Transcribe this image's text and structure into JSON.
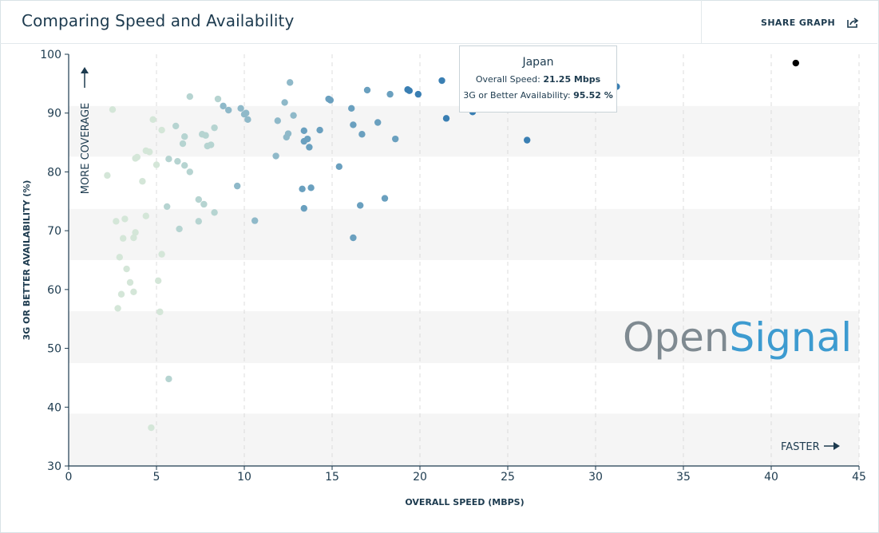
{
  "header": {
    "title": "Comparing Speed and Availability",
    "share_label": "SHARE GRAPH",
    "share_icon": "share-icon"
  },
  "tooltip": {
    "country": "Japan",
    "speed_label": "Overall Speed:",
    "speed_value": "21.25 Mbps",
    "avail_label": "3G or Better Availability:",
    "avail_value": "95.52 %"
  },
  "annotations": {
    "more_coverage": "MORE COVERAGE",
    "faster": "FASTER",
    "watermark_part1": "Open",
    "watermark_part2": "Signal"
  },
  "colors": {
    "light": "#d4e6d8",
    "mid_light": "#b6d4d1",
    "mid": "#8fb9c9",
    "mid_dark": "#6aa0bf",
    "dark": "#3a7fb3",
    "highlight": "#000000",
    "band": "#f5f5f5",
    "watermark_grey": "#7f8a91",
    "watermark_blue": "#3d9bd0"
  },
  "chart_data": {
    "type": "scatter",
    "title": "",
    "xlabel": "OVERALL SPEED (MBPS)",
    "ylabel": "3G OR BETTER AVAILABILITY (%)",
    "xlim": [
      0,
      45
    ],
    "ylim": [
      30,
      100
    ],
    "xticks": [
      0,
      5,
      10,
      15,
      20,
      25,
      30,
      35,
      40,
      45
    ],
    "yticks": [
      30,
      40,
      50,
      60,
      70,
      80,
      90,
      100
    ],
    "grid": "vertical dashed",
    "points": [
      {
        "x": 2.2,
        "y": 79.4
      },
      {
        "x": 2.5,
        "y": 90.6
      },
      {
        "x": 2.7,
        "y": 71.6
      },
      {
        "x": 2.8,
        "y": 56.8
      },
      {
        "x": 2.9,
        "y": 65.5
      },
      {
        "x": 3.0,
        "y": 59.2
      },
      {
        "x": 3.1,
        "y": 68.7
      },
      {
        "x": 3.2,
        "y": 72.0
      },
      {
        "x": 3.3,
        "y": 63.5
      },
      {
        "x": 3.5,
        "y": 61.2
      },
      {
        "x": 3.7,
        "y": 59.6
      },
      {
        "x": 3.7,
        "y": 68.8
      },
      {
        "x": 3.8,
        "y": 69.7
      },
      {
        "x": 3.8,
        "y": 82.3
      },
      {
        "x": 3.9,
        "y": 82.5
      },
      {
        "x": 4.2,
        "y": 78.4
      },
      {
        "x": 4.4,
        "y": 72.5
      },
      {
        "x": 4.4,
        "y": 83.6
      },
      {
        "x": 4.6,
        "y": 83.4
      },
      {
        "x": 4.7,
        "y": 36.5
      },
      {
        "x": 4.8,
        "y": 88.9
      },
      {
        "x": 5.0,
        "y": 81.2
      },
      {
        "x": 5.1,
        "y": 61.5
      },
      {
        "x": 5.2,
        "y": 56.2
      },
      {
        "x": 5.3,
        "y": 66.0
      },
      {
        "x": 5.3,
        "y": 87.1
      },
      {
        "x": 5.6,
        "y": 74.1
      },
      {
        "x": 5.7,
        "y": 82.2
      },
      {
        "x": 5.7,
        "y": 44.8
      },
      {
        "x": 6.1,
        "y": 87.8
      },
      {
        "x": 6.2,
        "y": 81.8
      },
      {
        "x": 6.3,
        "y": 70.3
      },
      {
        "x": 6.5,
        "y": 84.8
      },
      {
        "x": 6.6,
        "y": 86.0
      },
      {
        "x": 6.6,
        "y": 81.1
      },
      {
        "x": 6.9,
        "y": 80.0
      },
      {
        "x": 6.9,
        "y": 92.8
      },
      {
        "x": 7.4,
        "y": 75.3
      },
      {
        "x": 7.4,
        "y": 71.6
      },
      {
        "x": 7.6,
        "y": 86.4
      },
      {
        "x": 7.7,
        "y": 74.5
      },
      {
        "x": 7.8,
        "y": 86.2
      },
      {
        "x": 7.9,
        "y": 84.4
      },
      {
        "x": 8.1,
        "y": 84.6
      },
      {
        "x": 8.3,
        "y": 87.5
      },
      {
        "x": 8.3,
        "y": 73.1
      },
      {
        "x": 8.5,
        "y": 92.4
      },
      {
        "x": 8.8,
        "y": 91.2
      },
      {
        "x": 9.1,
        "y": 90.5
      },
      {
        "x": 9.6,
        "y": 77.6
      },
      {
        "x": 9.8,
        "y": 90.8
      },
      {
        "x": 10.0,
        "y": 89.8
      },
      {
        "x": 10.1,
        "y": 90.0
      },
      {
        "x": 10.2,
        "y": 88.9
      },
      {
        "x": 10.6,
        "y": 71.7
      },
      {
        "x": 11.8,
        "y": 82.7
      },
      {
        "x": 11.9,
        "y": 88.7
      },
      {
        "x": 12.3,
        "y": 91.8
      },
      {
        "x": 12.4,
        "y": 85.9
      },
      {
        "x": 12.5,
        "y": 86.5
      },
      {
        "x": 12.6,
        "y": 95.2
      },
      {
        "x": 12.8,
        "y": 89.6
      },
      {
        "x": 13.3,
        "y": 77.1
      },
      {
        "x": 13.4,
        "y": 85.2
      },
      {
        "x": 13.4,
        "y": 73.8
      },
      {
        "x": 13.4,
        "y": 87.0
      },
      {
        "x": 13.6,
        "y": 85.6
      },
      {
        "x": 13.7,
        "y": 84.2
      },
      {
        "x": 13.8,
        "y": 77.3
      },
      {
        "x": 14.3,
        "y": 87.1
      },
      {
        "x": 14.8,
        "y": 92.4
      },
      {
        "x": 14.9,
        "y": 92.2
      },
      {
        "x": 15.4,
        "y": 80.9
      },
      {
        "x": 16.1,
        "y": 90.8
      },
      {
        "x": 16.2,
        "y": 88.0
      },
      {
        "x": 16.2,
        "y": 68.8
      },
      {
        "x": 16.6,
        "y": 74.3
      },
      {
        "x": 16.7,
        "y": 86.4
      },
      {
        "x": 17.0,
        "y": 93.9
      },
      {
        "x": 17.6,
        "y": 88.4
      },
      {
        "x": 18.0,
        "y": 75.5
      },
      {
        "x": 18.3,
        "y": 93.2
      },
      {
        "x": 18.6,
        "y": 85.6
      },
      {
        "x": 19.3,
        "y": 94.0
      },
      {
        "x": 19.4,
        "y": 93.8
      },
      {
        "x": 19.9,
        "y": 93.2
      },
      {
        "x": 21.25,
        "y": 95.52
      },
      {
        "x": 21.5,
        "y": 89.1
      },
      {
        "x": 23.0,
        "y": 90.2
      },
      {
        "x": 26.1,
        "y": 85.4
      },
      {
        "x": 31.2,
        "y": 94.5
      },
      {
        "x": 41.4,
        "y": 98.5
      }
    ],
    "highlighted": {
      "x": 41.4,
      "y": 98.5
    }
  }
}
